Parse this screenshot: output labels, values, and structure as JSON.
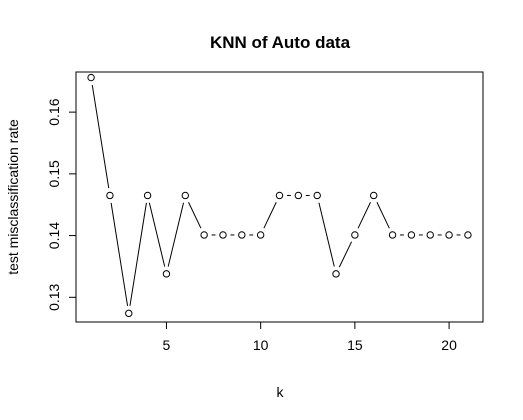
{
  "chart_data": {
    "type": "line",
    "title": "KNN of Auto data",
    "xlabel": "k",
    "ylabel": "test misclassification rate",
    "xlim": [
      0.2,
      21.8
    ],
    "ylim": [
      0.126,
      0.1665
    ],
    "x_ticks": [
      5,
      10,
      15,
      20
    ],
    "y_ticks": [
      0.13,
      0.14,
      0.15,
      0.16
    ],
    "x_tick_labels": [
      "5",
      "10",
      "15",
      "20"
    ],
    "y_tick_labels": [
      "0.13",
      "0.14",
      "0.15",
      "0.16"
    ],
    "series": [
      {
        "name": "test misclassification rate",
        "style": "both",
        "marker": "open-circle",
        "x": [
          1,
          2,
          3,
          4,
          5,
          6,
          7,
          8,
          9,
          10,
          11,
          12,
          13,
          14,
          15,
          16,
          17,
          18,
          19,
          20,
          21
        ],
        "y": [
          0.1656,
          0.1465,
          0.1274,
          0.1465,
          0.1338,
          0.1465,
          0.1401,
          0.1401,
          0.1401,
          0.1401,
          0.1465,
          0.1465,
          0.1465,
          0.1338,
          0.1401,
          0.1465,
          0.1401,
          0.1401,
          0.1401,
          0.1401,
          0.1401
        ]
      }
    ],
    "grid": false,
    "legend": "none"
  }
}
